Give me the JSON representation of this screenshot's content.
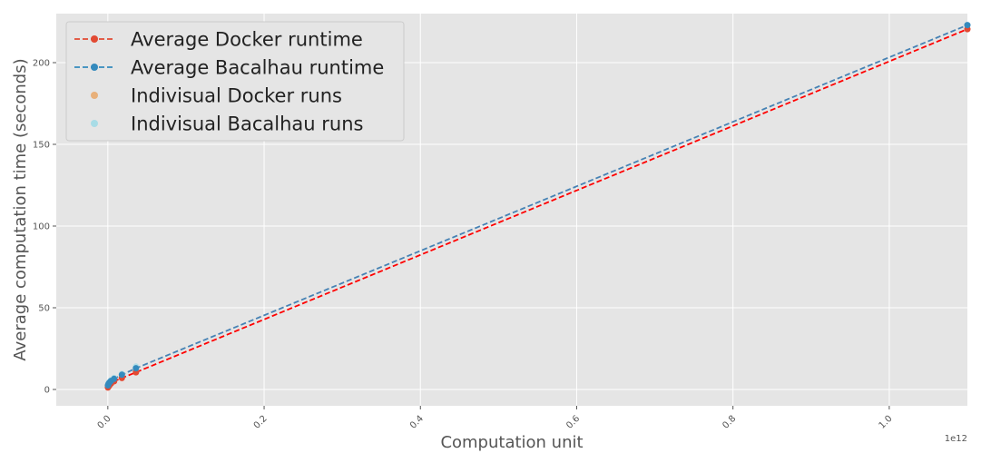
{
  "chart_data": {
    "type": "line",
    "xlabel": "Computation unit",
    "ylabel": "Average computation time (seconds)",
    "x_offset_label": "1e12",
    "xlim": [
      -0.066,
      1.1
    ],
    "ylim": [
      -10,
      230
    ],
    "x_ticks": [
      0.0,
      0.2,
      0.4,
      0.6,
      0.8,
      1.0
    ],
    "x_tick_labels": [
      "0.0",
      "0.2",
      "0.4",
      "0.6",
      "0.8",
      "1.0"
    ],
    "y_ticks": [
      0,
      50,
      100,
      150,
      200
    ],
    "y_tick_labels": [
      "0",
      "50",
      "100",
      "150",
      "200"
    ],
    "grid": true,
    "legend_position": "top-left",
    "series": [
      {
        "name": "Average Docker runtime",
        "kind": "line",
        "color": "#E24A33",
        "line_color": "#ff0000",
        "x": [
          0.0001,
          0.001,
          0.002,
          0.004,
          0.008,
          0.018,
          0.036,
          1.1
        ],
        "y": [
          1.2,
          1.8,
          2.5,
          3.6,
          5.0,
          7.0,
          10.5,
          220.5
        ]
      },
      {
        "name": "Average Bacalhau runtime",
        "kind": "line",
        "color": "#348ABD",
        "line_color": "#4682b4",
        "x": [
          0.0001,
          0.001,
          0.002,
          0.004,
          0.008,
          0.018,
          0.036,
          1.1
        ],
        "y": [
          2.5,
          3.5,
          4.2,
          5.2,
          6.5,
          9.0,
          13.0,
          223.0
        ]
      },
      {
        "name": "Indivisual Docker runs",
        "kind": "scatter",
        "color": "#E8B07A",
        "x": [
          0.0001,
          0.001,
          0.002,
          0.004,
          0.008,
          0.018,
          0.036
        ],
        "y": [
          1.5,
          2.2,
          2.8,
          4.0,
          5.5,
          7.5,
          11.0
        ]
      },
      {
        "name": "Indivisual Bacalhau runs",
        "kind": "scatter",
        "color": "#A8DCE6",
        "x": [
          0.0001,
          0.001,
          0.002,
          0.004,
          0.008,
          0.018,
          0.036
        ],
        "y": [
          2.8,
          3.8,
          4.5,
          5.6,
          7.0,
          9.5,
          14.0
        ]
      }
    ]
  }
}
